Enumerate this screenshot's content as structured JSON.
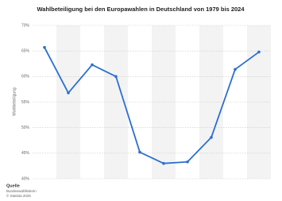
{
  "chart_data": {
    "type": "line",
    "title": "Wahlbeteiligung bei den Europawahlen in Deutschland von 1979 bis 2024",
    "y_label": "Wahlbeteiligung",
    "categories": [
      null,
      null,
      null,
      null,
      null,
      null,
      null,
      null,
      null,
      null
    ],
    "values": [
      65.7,
      56.8,
      62.3,
      60.0,
      45.2,
      43.0,
      43.3,
      48.1,
      61.4,
      64.8
    ],
    "color": "#2b6fd2",
    "ylim": [
      40,
      70
    ],
    "yticks": [
      {
        "value": 40,
        "label": "40%"
      },
      {
        "value": 45,
        "label": "45%"
      },
      {
        "value": 50,
        "label": "50%"
      },
      {
        "value": 55,
        "label": "55%"
      },
      {
        "value": 60,
        "label": "60%"
      },
      {
        "value": 65,
        "label": "65%"
      },
      {
        "value": 70,
        "label": "70%"
      }
    ],
    "grid": true,
    "source_title": "Quelle",
    "source": "Bundeswahlleiterin",
    "copyright": "© Statista 2025"
  }
}
